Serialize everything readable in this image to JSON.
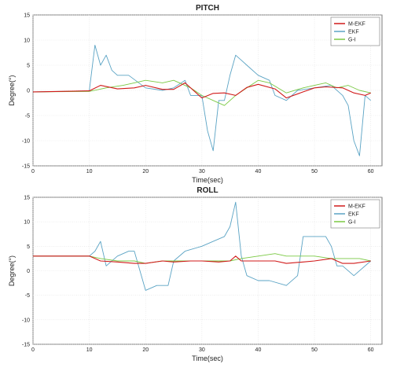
{
  "chart_data": [
    {
      "type": "line",
      "title": "PITCH",
      "xlabel": "Time(sec)",
      "ylabel": "Degree(°)",
      "xlim": [
        0,
        62
      ],
      "ylim": [
        -15,
        15
      ],
      "xticks": [
        0,
        10,
        20,
        30,
        40,
        50,
        60
      ],
      "yticks": [
        -15,
        -10,
        -5,
        0,
        5,
        10,
        15
      ],
      "legend_position": "top-right",
      "colors": {
        "M-EKF": "#d11a1a",
        "EKF": "#5aa3c4",
        "G-I": "#7ac943"
      },
      "series": [
        {
          "name": "M-EKF",
          "x": [
            0,
            5,
            10,
            12,
            15,
            18,
            20,
            23,
            25,
            27,
            30,
            32,
            34,
            36,
            38,
            40,
            43,
            45,
            48,
            50,
            52,
            55,
            57,
            59,
            60
          ],
          "y": [
            -0.3,
            -0.2,
            -0.1,
            1,
            0.3,
            0.5,
            1,
            0.2,
            0.2,
            1.5,
            -1.5,
            -0.6,
            -0.5,
            -1,
            0.6,
            1.2,
            0.3,
            -1.5,
            -0.3,
            0.5,
            0.7,
            0.5,
            -0.5,
            -1,
            -0.5
          ]
        },
        {
          "name": "EKF",
          "x": [
            0,
            5,
            10,
            11,
            12,
            13,
            14,
            15,
            17,
            20,
            23,
            25,
            27,
            28,
            30,
            31,
            32,
            33,
            34,
            35,
            36,
            37,
            38,
            40,
            42,
            43,
            45,
            47,
            50,
            53,
            55,
            56,
            57,
            58,
            59,
            60
          ],
          "y": [
            -0.3,
            -0.2,
            -0.1,
            9,
            5,
            7,
            4,
            3,
            3,
            0.5,
            0,
            0.5,
            2,
            -1,
            -1,
            -8,
            -12,
            -2,
            -2,
            3,
            7,
            6,
            5,
            3,
            2,
            -1,
            -2,
            0,
            0.5,
            1,
            -1,
            -3,
            -10,
            -13,
            -1,
            -2
          ]
        },
        {
          "name": "G-I",
          "x": [
            0,
            10,
            13,
            16,
            18,
            20,
            23,
            25,
            28,
            30,
            32,
            34,
            36,
            38,
            40,
            42,
            45,
            48,
            50,
            52,
            54,
            56,
            58,
            60
          ],
          "y": [
            -0.3,
            -0.2,
            0.5,
            1,
            1.5,
            2,
            1.5,
            2,
            0.5,
            -1,
            -2,
            -3,
            -1,
            0.5,
            2,
            1.5,
            -0.5,
            0.5,
            1,
            1.5,
            0.5,
            1,
            0,
            -0.5
          ]
        }
      ]
    },
    {
      "type": "line",
      "title": "ROLL",
      "xlabel": "Time(sec)",
      "ylabel": "Degree(°)",
      "xlim": [
        0,
        62
      ],
      "ylim": [
        -15,
        15
      ],
      "xticks": [
        0,
        10,
        20,
        30,
        40,
        50,
        60
      ],
      "yticks": [
        -15,
        -10,
        -5,
        0,
        5,
        10,
        15
      ],
      "legend_position": "top-right",
      "colors": {
        "M-EKF": "#d11a1a",
        "EKF": "#5aa3c4",
        "G-I": "#7ac943"
      },
      "series": [
        {
          "name": "M-EKF",
          "x": [
            0,
            5,
            10,
            11,
            12,
            15,
            18,
            20,
            23,
            25,
            28,
            30,
            33,
            35,
            36,
            37,
            40,
            43,
            45,
            48,
            50,
            53,
            55,
            57,
            60
          ],
          "y": [
            3,
            3,
            3,
            2.5,
            2,
            1.8,
            1.5,
            1.5,
            2,
            1.8,
            2,
            2,
            1.8,
            2,
            3,
            2,
            2,
            2,
            1.5,
            1.8,
            2,
            2.5,
            1.5,
            1.5,
            2
          ]
        },
        {
          "name": "EKF",
          "x": [
            0,
            5,
            10,
            11,
            12,
            13,
            15,
            17,
            18,
            20,
            22,
            24,
            25,
            27,
            30,
            32,
            34,
            35,
            36,
            37,
            38,
            40,
            42,
            45,
            47,
            48,
            50,
            52,
            53,
            54,
            55,
            57,
            60
          ],
          "y": [
            3,
            3,
            3,
            4,
            6,
            1,
            3,
            4,
            4,
            -4,
            -3,
            -3,
            2,
            4,
            5,
            6,
            7,
            9,
            14,
            3,
            -1,
            -2,
            -2,
            -3,
            -1,
            7,
            7,
            7,
            5,
            1,
            1,
            -1,
            2
          ]
        },
        {
          "name": "G-I",
          "x": [
            0,
            5,
            10,
            12,
            15,
            18,
            20,
            23,
            25,
            28,
            30,
            33,
            35,
            37,
            40,
            43,
            45,
            48,
            50,
            53,
            55,
            58,
            60
          ],
          "y": [
            3,
            3,
            3,
            2.5,
            2,
            2,
            1.5,
            2,
            2,
            2,
            2,
            2,
            2,
            2.5,
            3,
            3.5,
            3,
            3,
            3,
            2.5,
            2.5,
            2.5,
            2
          ]
        }
      ]
    }
  ]
}
